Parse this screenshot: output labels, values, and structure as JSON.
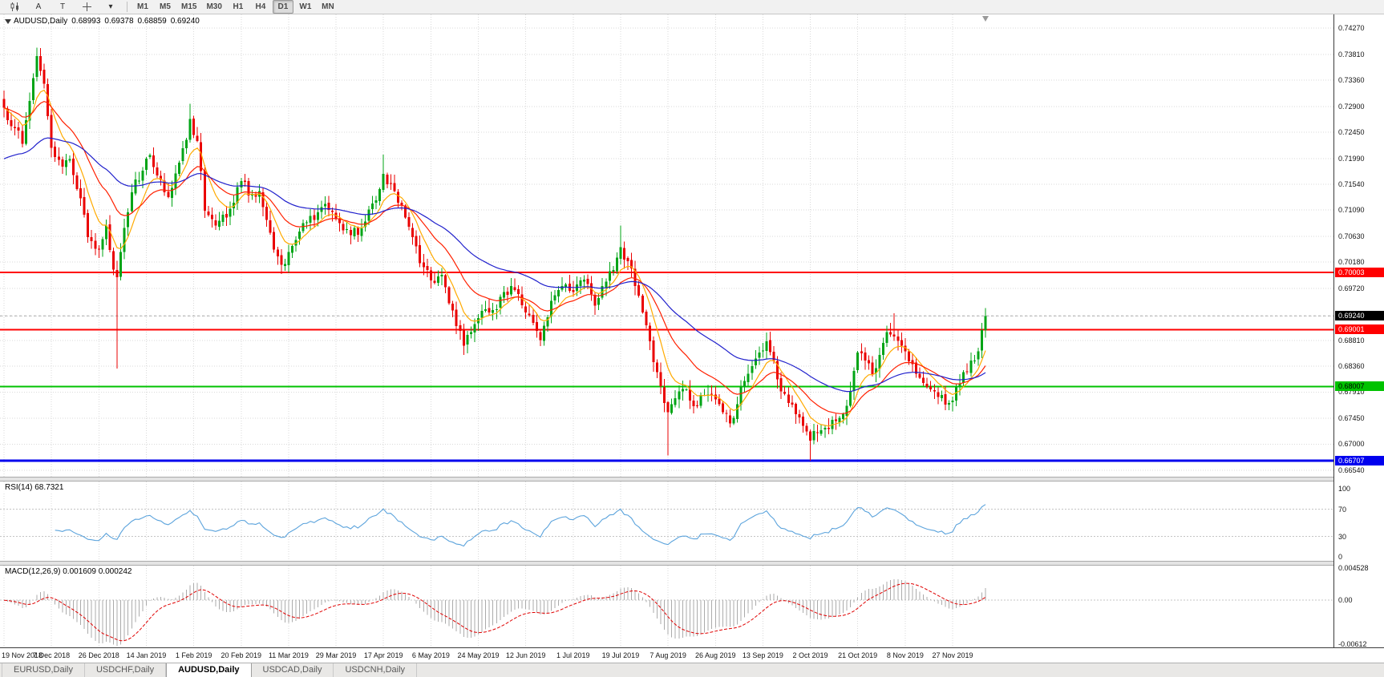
{
  "toolbar": {
    "tools": {
      "a_label": "A",
      "t_label": "T",
      "caret": "▾"
    },
    "timeframes": [
      "M1",
      "M5",
      "M15",
      "M30",
      "H1",
      "H4",
      "D1",
      "W1",
      "MN"
    ],
    "active_timeframe": "D1"
  },
  "chart": {
    "symbol_label": "AUDUSD,Daily",
    "open": "0.68993",
    "high": "0.69378",
    "low": "0.68859",
    "close": "0.69240"
  },
  "rsi": {
    "label": "RSI(14) 68.7321",
    "value": 68.7321,
    "period": 14,
    "color": "#5ba3dc",
    "axis": [
      {
        "text": "100",
        "value": 100
      },
      {
        "text": "70",
        "value": 70
      },
      {
        "text": "30",
        "value": 30
      },
      {
        "text": "0",
        "value": 0
      }
    ]
  },
  "macd": {
    "label": "MACD(12,26,9) 0.001609 0.000242",
    "fast": 12,
    "slow": 26,
    "signal": 9,
    "main_value": 0.001609,
    "signal_value": 0.000242,
    "hist_color": "#ababab",
    "signal_color": "#e00000",
    "axis": [
      {
        "text": "0.004528",
        "value": 0.004528
      },
      {
        "text": "0.00",
        "value": 0
      },
      {
        "text": "-0.00612",
        "value": -0.00612
      }
    ]
  },
  "tabs": [
    "EURUSD,Daily",
    "USDCHF,Daily",
    "AUDUSD,Daily",
    "USDCAD,Daily",
    "USDCNH,Daily"
  ],
  "active_tab": "AUDUSD,Daily",
  "chart_data": {
    "type": "candlestick",
    "title": "AUDUSD,Daily",
    "ohlc_display": {
      "open": 0.68993,
      "high": 0.69378,
      "low": 0.68859,
      "close": 0.6924
    },
    "current_price": {
      "value": 0.6924,
      "label": "0.69240"
    },
    "price_axis_ticks": [
      "0.74270",
      "0.73810",
      "0.73360",
      "0.72900",
      "0.72450",
      "0.71990",
      "0.71540",
      "0.71090",
      "0.70630",
      "0.70180",
      "0.69720",
      "0.69240",
      "0.68810",
      "0.68360",
      "0.67910",
      "0.67450",
      "0.67000",
      "0.66540"
    ],
    "time_axis_ticks": [
      "19 Nov 2018",
      "7 Dec 2018",
      "26 Dec 2018",
      "14 Jan 2019",
      "1 Feb 2019",
      "20 Feb 2019",
      "11 Mar 2019",
      "29 Mar 2019",
      "17 Apr 2019",
      "6 May 2019",
      "24 May 2019",
      "12 Jun 2019",
      "1 Jul 2019",
      "19 Jul 2019",
      "7 Aug 2019",
      "26 Aug 2019",
      "13 Sep 2019",
      "2 Oct 2019",
      "21 Oct 2019",
      "8 Nov 2019",
      "27 Nov 2019"
    ],
    "horizontal_levels": [
      {
        "price": 0.70003,
        "label": "0.70003",
        "color": "#ff0000",
        "label_text": "#ffffff",
        "width": 2
      },
      {
        "price": 0.69001,
        "label": "0.69001",
        "color": "#ff0000",
        "label_text": "#ffffff",
        "width": 2
      },
      {
        "price": 0.68007,
        "label": "0.68007",
        "color": "#00c200",
        "label_text": "#000000",
        "width": 2
      },
      {
        "price": 0.66707,
        "label": "0.66707",
        "color": "#0000ee",
        "label_text": "#ffffff",
        "width": 3
      }
    ],
    "price_range": [
      0.6643,
      0.7451
    ],
    "macd_scale": [
      -0.0064,
      0.00465
    ],
    "num_candles": 270,
    "candles_per_tick": 13,
    "up_color": "#00a416",
    "down_color": "#ea0000",
    "moving_averages": [
      {
        "name": "ma-fast",
        "period": 8,
        "color": "#ffaa00",
        "seed": null
      },
      {
        "name": "ma-medium",
        "period": 20,
        "color": "#ff2000",
        "seed": null
      },
      {
        "name": "ma-slow",
        "period": 50,
        "color": "#2020cc",
        "seed": 0.7195
      }
    ],
    "close_anchors": [
      [
        0,
        0.7288
      ],
      [
        3,
        0.7252
      ],
      [
        5,
        0.7225
      ],
      [
        7,
        0.73
      ],
      [
        9,
        0.7378
      ],
      [
        11,
        0.733
      ],
      [
        13,
        0.7218
      ],
      [
        16,
        0.7185
      ],
      [
        18,
        0.7198
      ],
      [
        21,
        0.713
      ],
      [
        23,
        0.7062
      ],
      [
        26,
        0.704
      ],
      [
        28,
        0.7082
      ],
      [
        30,
        0.7005
      ],
      [
        31,
        0.6992
      ],
      [
        33,
        0.7078
      ],
      [
        35,
        0.714
      ],
      [
        38,
        0.7178
      ],
      [
        40,
        0.7205
      ],
      [
        43,
        0.7162
      ],
      [
        45,
        0.7132
      ],
      [
        48,
        0.7192
      ],
      [
        50,
        0.7232
      ],
      [
        51,
        0.7268
      ],
      [
        53,
        0.723
      ],
      [
        55,
        0.7108
      ],
      [
        58,
        0.7082
      ],
      [
        61,
        0.7096
      ],
      [
        63,
        0.7122
      ],
      [
        65,
        0.716
      ],
      [
        68,
        0.7136
      ],
      [
        70,
        0.7142
      ],
      [
        72,
        0.7092
      ],
      [
        75,
        0.7028
      ],
      [
        77,
        0.7015
      ],
      [
        79,
        0.7046
      ],
      [
        82,
        0.7086
      ],
      [
        85,
        0.7092
      ],
      [
        88,
        0.712
      ],
      [
        90,
        0.7106
      ],
      [
        92,
        0.7086
      ],
      [
        94,
        0.7076
      ],
      [
        97,
        0.7066
      ],
      [
        100,
        0.711
      ],
      [
        102,
        0.7126
      ],
      [
        104,
        0.7172
      ],
      [
        106,
        0.7155
      ],
      [
        108,
        0.7122
      ],
      [
        110,
        0.7096
      ],
      [
        112,
        0.7062
      ],
      [
        114,
        0.7016
      ],
      [
        117,
        0.6986
      ],
      [
        120,
        0.6996
      ],
      [
        122,
        0.6946
      ],
      [
        124,
        0.6906
      ],
      [
        126,
        0.6872
      ],
      [
        128,
        0.6896
      ],
      [
        130,
        0.692
      ],
      [
        133,
        0.693
      ],
      [
        135,
        0.6936
      ],
      [
        137,
        0.6966
      ],
      [
        139,
        0.6976
      ],
      [
        141,
        0.6962
      ],
      [
        143,
        0.693
      ],
      [
        145,
        0.6912
      ],
      [
        147,
        0.6882
      ],
      [
        149,
        0.6922
      ],
      [
        151,
        0.696
      ],
      [
        153,
        0.6976
      ],
      [
        156,
        0.6966
      ],
      [
        158,
        0.6986
      ],
      [
        160,
        0.698
      ],
      [
        162,
        0.6942
      ],
      [
        164,
        0.6976
      ],
      [
        166,
        0.7002
      ],
      [
        168,
        0.7026
      ],
      [
        169,
        0.7044
      ],
      [
        171,
        0.702
      ],
      [
        173,
        0.6976
      ],
      [
        175,
        0.693
      ],
      [
        177,
        0.688
      ],
      [
        179,
        0.6826
      ],
      [
        181,
        0.6772
      ],
      [
        182,
        0.6756
      ],
      [
        184,
        0.678
      ],
      [
        186,
        0.6796
      ],
      [
        188,
        0.6776
      ],
      [
        190,
        0.6766
      ],
      [
        192,
        0.6786
      ],
      [
        195,
        0.6778
      ],
      [
        197,
        0.6756
      ],
      [
        199,
        0.6736
      ],
      [
        201,
        0.677
      ],
      [
        203,
        0.681
      ],
      [
        205,
        0.6836
      ],
      [
        207,
        0.686
      ],
      [
        209,
        0.688
      ],
      [
        211,
        0.6846
      ],
      [
        213,
        0.6792
      ],
      [
        215,
        0.6772
      ],
      [
        217,
        0.6752
      ],
      [
        219,
        0.6732
      ],
      [
        221,
        0.6706
      ],
      [
        223,
        0.672
      ],
      [
        226,
        0.6726
      ],
      [
        228,
        0.674
      ],
      [
        230,
        0.6752
      ],
      [
        232,
        0.6792
      ],
      [
        234,
        0.686
      ],
      [
        236,
        0.6846
      ],
      [
        238,
        0.6822
      ],
      [
        240,
        0.6856
      ],
      [
        242,
        0.6896
      ],
      [
        244,
        0.6888
      ],
      [
        246,
        0.6872
      ],
      [
        247,
        0.6862
      ],
      [
        249,
        0.684
      ],
      [
        251,
        0.6816
      ],
      [
        253,
        0.68
      ],
      [
        255,
        0.6792
      ],
      [
        257,
        0.6786
      ],
      [
        259,
        0.6772
      ],
      [
        260,
        0.6776
      ],
      [
        261,
        0.68
      ],
      [
        263,
        0.6826
      ],
      [
        265,
        0.6846
      ],
      [
        267,
        0.6862
      ],
      [
        268,
        0.6899
      ],
      [
        269,
        0.6924
      ]
    ],
    "wick_overrides": [
      {
        "index": 9,
        "high": 0.7393
      },
      {
        "index": 31,
        "low": 0.6832
      },
      {
        "index": 51,
        "high": 0.7295
      },
      {
        "index": 77,
        "low": 0.7003
      },
      {
        "index": 104,
        "high": 0.7206
      },
      {
        "index": 126,
        "low": 0.6861
      },
      {
        "index": 169,
        "high": 0.7082
      },
      {
        "index": 182,
        "low": 0.668
      },
      {
        "index": 209,
        "high": 0.6895
      },
      {
        "index": 221,
        "low": 0.6671
      },
      {
        "index": 244,
        "high": 0.6929
      }
    ],
    "last_candle": {
      "open": 0.68993,
      "high": 0.69378,
      "low": 0.68859,
      "close": 0.6924
    }
  }
}
